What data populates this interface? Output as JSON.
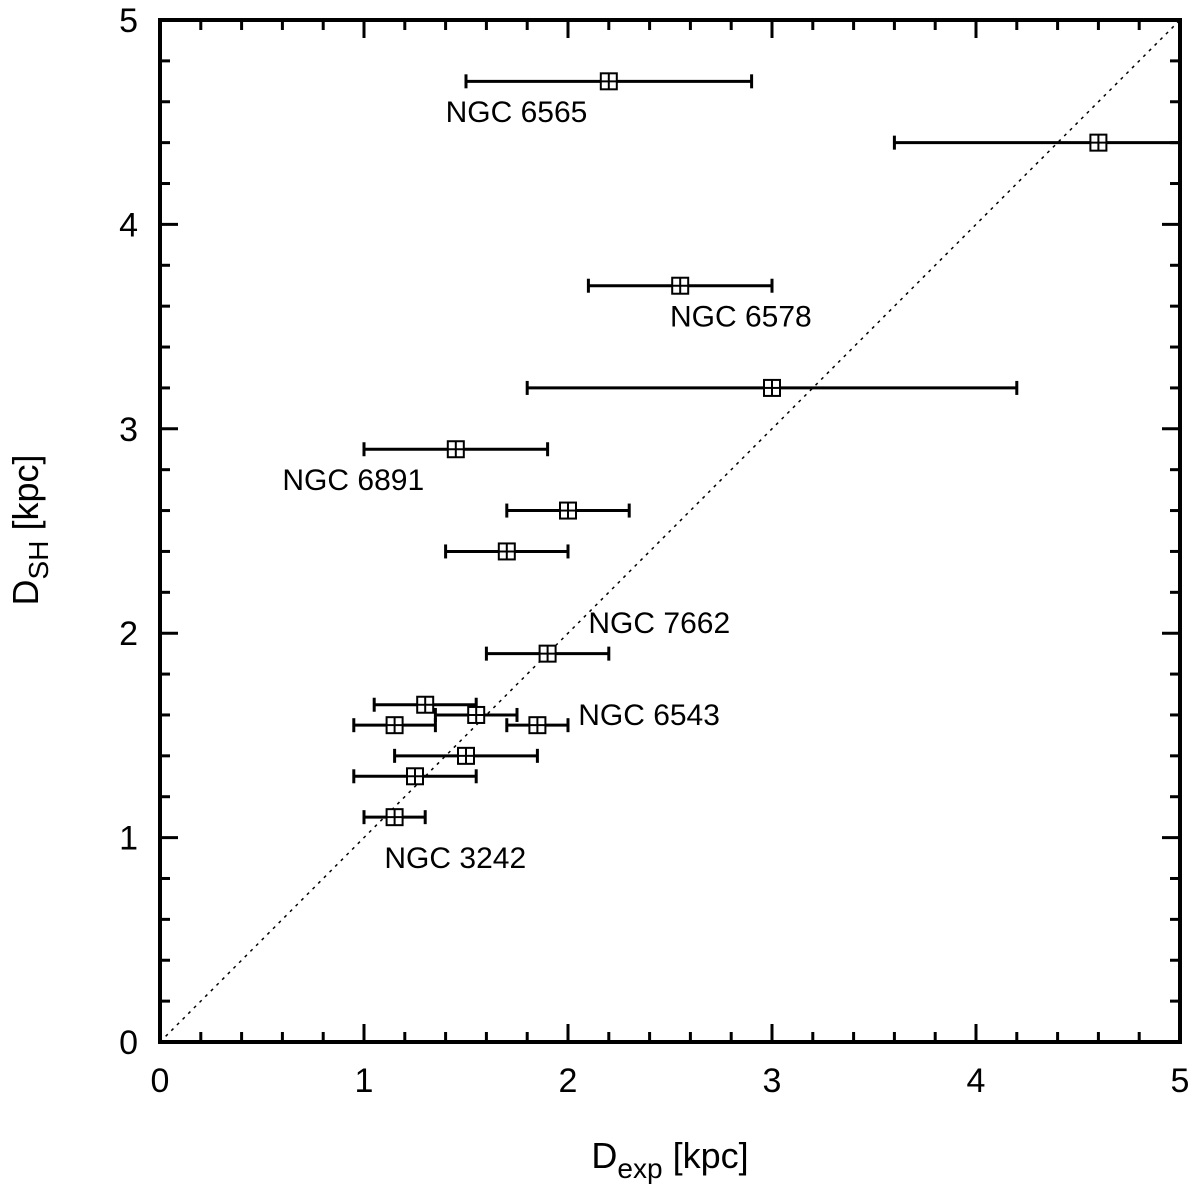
{
  "chart_data": {
    "type": "scatter",
    "title": "",
    "xlabel": {
      "main": "D",
      "sub": "exp",
      "unit": " [kpc]"
    },
    "ylabel": {
      "main": "D",
      "sub": "SH",
      "unit": " [kpc]"
    },
    "xlim": [
      0,
      5
    ],
    "ylim": [
      0,
      5
    ],
    "xticks": [
      0,
      1,
      2,
      3,
      4,
      5
    ],
    "yticks": [
      0,
      1,
      2,
      3,
      4,
      5
    ],
    "minor_tick_step": 0.2,
    "grid": false,
    "legend": "none",
    "reference_line": {
      "style": "dotted",
      "slope": 1,
      "intercept": 0
    },
    "marker": "boxed-plus",
    "points": [
      {
        "x": 2.2,
        "y": 4.7,
        "xerr": [
          1.5,
          2.9
        ]
      },
      {
        "x": 4.6,
        "y": 4.4,
        "xerr": [
          3.6,
          5.0
        ]
      },
      {
        "x": 2.55,
        "y": 3.7,
        "xerr": [
          2.1,
          3.0
        ]
      },
      {
        "x": 3.0,
        "y": 3.2,
        "xerr": [
          1.8,
          4.2
        ]
      },
      {
        "x": 1.45,
        "y": 2.9,
        "xerr": [
          1.0,
          1.9
        ]
      },
      {
        "x": 2.0,
        "y": 2.6,
        "xerr": [
          1.7,
          2.3
        ]
      },
      {
        "x": 1.7,
        "y": 2.4,
        "xerr": [
          1.4,
          2.0
        ]
      },
      {
        "x": 1.9,
        "y": 1.9,
        "xerr": [
          1.6,
          2.2
        ]
      },
      {
        "x": 1.3,
        "y": 1.65,
        "xerr": [
          1.05,
          1.55
        ]
      },
      {
        "x": 1.55,
        "y": 1.6,
        "xerr": [
          1.35,
          1.75
        ]
      },
      {
        "x": 1.15,
        "y": 1.55,
        "xerr": [
          0.95,
          1.35
        ]
      },
      {
        "x": 1.85,
        "y": 1.55,
        "xerr": [
          1.7,
          2.0
        ]
      },
      {
        "x": 1.5,
        "y": 1.4,
        "xerr": [
          1.15,
          1.85
        ]
      },
      {
        "x": 1.25,
        "y": 1.3,
        "xerr": [
          0.95,
          1.55
        ]
      },
      {
        "x": 1.15,
        "y": 1.1,
        "xerr": [
          1.0,
          1.3
        ]
      }
    ],
    "annotations": [
      {
        "text": "NGC 6565",
        "x": 1.4,
        "y": 4.55
      },
      {
        "text": "NGC 6578",
        "x": 2.5,
        "y": 3.55
      },
      {
        "text": "NGC 6891",
        "x": 0.6,
        "y": 2.75
      },
      {
        "text": "NGC 7662",
        "x": 2.1,
        "y": 2.05
      },
      {
        "text": "NGC 6543",
        "x": 2.05,
        "y": 1.6
      },
      {
        "text": "NGC 3242",
        "x": 1.1,
        "y": 0.9
      }
    ]
  }
}
